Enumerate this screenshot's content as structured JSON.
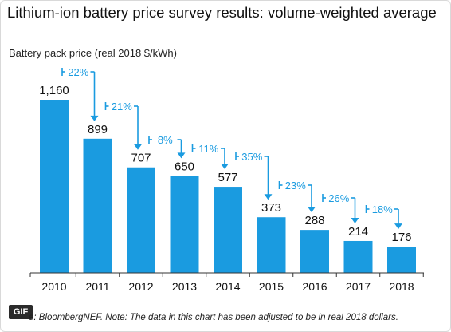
{
  "title": "Lithium-ion battery price survey results: volume-weighted average",
  "ylabel": "Battery pack price (real 2018 $/kWh)",
  "badge": "GIF",
  "source": "e: BloombergNEF. Note: The data in this chart has been adjusted to be in real 2018 dollars.",
  "colors": {
    "bar": "#1a9be0",
    "arrow": "#1a9be0",
    "axis": "#333333"
  },
  "chart_data": {
    "type": "bar",
    "title": "Lithium-ion battery price survey results: volume-weighted average",
    "ylabel": "Battery pack price (real 2018 $/kWh)",
    "xlabel": "",
    "categories": [
      "2010",
      "2011",
      "2012",
      "2013",
      "2014",
      "2015",
      "2016",
      "2017",
      "2018"
    ],
    "values": [
      1160,
      899,
      707,
      650,
      577,
      373,
      288,
      214,
      176
    ],
    "value_labels": [
      "1,160",
      "899",
      "707",
      "650",
      "577",
      "373",
      "288",
      "214",
      "176"
    ],
    "annotations": [
      "22%",
      "21%",
      "8%",
      "11%",
      "35%",
      "23%",
      "26%",
      "18%"
    ],
    "ylim": [
      0,
      1160
    ],
    "grid": false
  }
}
